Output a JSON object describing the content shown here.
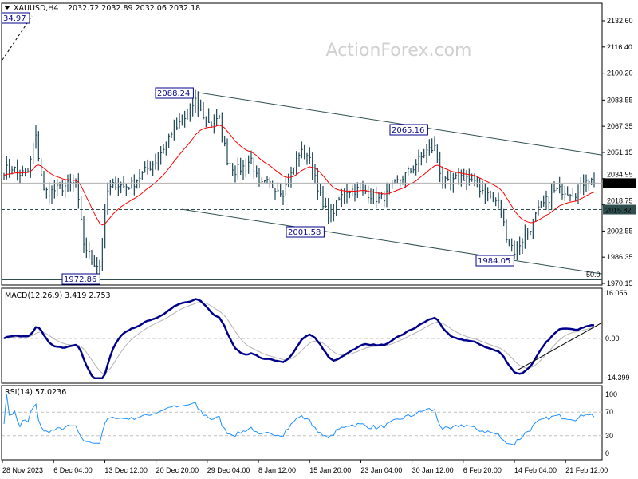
{
  "header": {
    "symbol": "XAUUSD,H4",
    "ohlc": "2032.72 2032.89 2032.06 2032.18",
    "dropdown_icon": "triangle-down-icon"
  },
  "watermark": "ActionForex.com",
  "colors": {
    "bars": "#1d4556",
    "ma": "#ff0000",
    "macd": "#00008b",
    "signal": "#b4b4b4",
    "rsi": "#1e90ff",
    "label_border": "#00008b",
    "current_bg": "#000000",
    "level_bg": "#2f4f4f"
  },
  "chart_data": [
    {
      "type": "bar",
      "name_label": "",
      "ylim": [
        1970.15,
        2132.6
      ],
      "y_ticks": [
        "2132.60",
        "2116.40",
        "2100.20",
        "2083.55",
        "2067.35",
        "2051.15",
        "2034.95",
        "2018.75",
        "2002.55",
        "1986.35",
        "1970.15"
      ],
      "x_ticks": [
        "28 Nov 2023",
        "6 Dec 04:00",
        "13 Dec 12:00",
        "20 Dec 20:00",
        "29 Dec 04:00",
        "8 Jan 12:00",
        "15 Jan 20:00",
        "23 Jan 04:00",
        "30 Jan 12:00",
        "6 Feb 20:00",
        "14 Feb 04:00",
        "21 Feb 12:00"
      ],
      "close_samples": [
        2040,
        2042,
        2038,
        2039,
        2060,
        2027,
        2027,
        2029,
        2031,
        2032,
        1995,
        1984,
        1981,
        2027,
        2032,
        2030,
        2031,
        2036,
        2041,
        2046,
        2054,
        2064,
        2068,
        2073,
        2082,
        2074,
        2069,
        2071,
        2047,
        2040,
        2042,
        2047,
        2030,
        2032,
        2030,
        2027,
        2037,
        2051,
        2050,
        2037,
        2017,
        2012,
        2022,
        2028,
        2028,
        2028,
        2025,
        2022,
        2025,
        2031,
        2036,
        2040,
        2046,
        2052,
        2054,
        2033,
        2031,
        2036,
        2036,
        2031,
        2028,
        2024,
        2020,
        2000,
        1990,
        1997,
        2005,
        2015,
        2021,
        2027,
        2028,
        2027,
        2026,
        2036,
        2032.18
      ],
      "current_price": "2032.18",
      "level_price": "2015.82",
      "annotations": [
        {
          "text": "34.97",
          "price": 2134.97
        },
        {
          "text": "2088.24",
          "price": 2088.24
        },
        {
          "text": "2065.16",
          "price": 2065.16
        },
        {
          "text": "2001.58",
          "price": 2001.58
        },
        {
          "text": "1984.05",
          "price": 1984.05
        },
        {
          "text": "1972.86",
          "price": 1972.86
        },
        {
          "text": "50.0",
          "price": 1972.86
        }
      ],
      "channel_upper": [
        [
          24.3,
          2088.24
        ],
        [
          75,
          2049.5
        ]
      ],
      "channel_lower": [
        [
          22.3,
          2016.0
        ],
        [
          75,
          1976.0
        ]
      ]
    },
    {
      "type": "line",
      "title": "MACD(12,26,9) 3.419 2.753",
      "ylim": [
        -14.399,
        16.056
      ],
      "y_ticks": [
        "16.056",
        "0.00",
        "-14.399"
      ],
      "trendline": [
        [
          64.5,
          -11.0
        ],
        [
          75,
          5.6
        ]
      ]
    },
    {
      "type": "line",
      "title": "RSI(14) 57.0236",
      "ylim": [
        0,
        100
      ],
      "y_ticks": [
        "100",
        "70",
        "30",
        "0"
      ],
      "levels": [
        70,
        30
      ]
    }
  ]
}
